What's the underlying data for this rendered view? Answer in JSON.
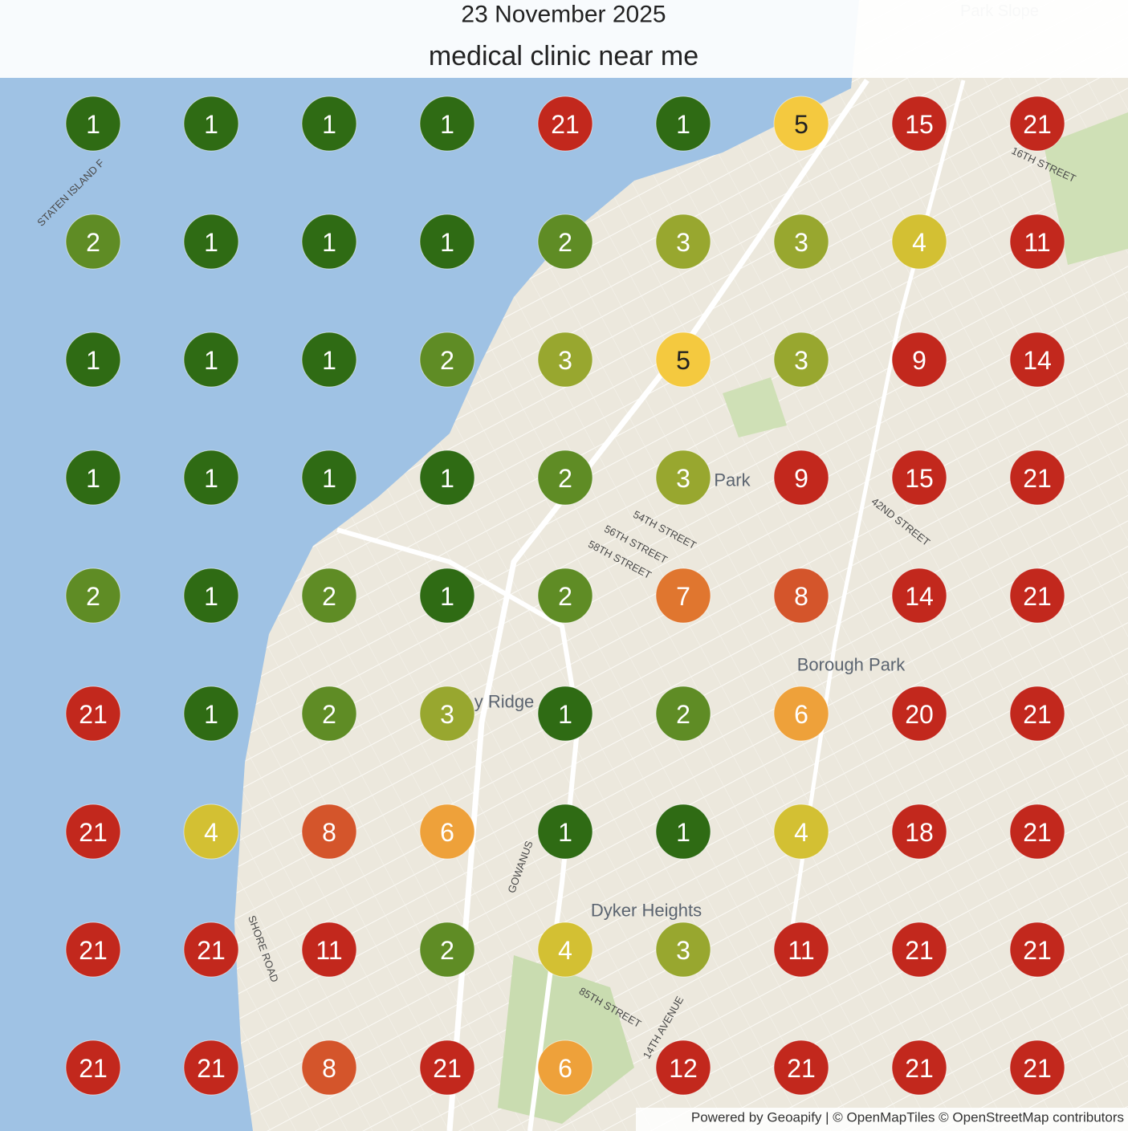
{
  "header": {
    "date": "23 November 2025",
    "query": "medical clinic near me"
  },
  "grid": {
    "rows": [
      [
        1,
        1,
        1,
        1,
        21,
        1,
        5,
        15,
        21
      ],
      [
        2,
        1,
        1,
        1,
        2,
        3,
        3,
        4,
        11
      ],
      [
        1,
        1,
        1,
        2,
        3,
        5,
        3,
        9,
        14
      ],
      [
        1,
        1,
        1,
        1,
        2,
        3,
        9,
        15,
        21
      ],
      [
        2,
        1,
        2,
        1,
        2,
        7,
        8,
        14,
        21
      ],
      [
        21,
        1,
        2,
        3,
        1,
        2,
        6,
        20,
        21
      ],
      [
        21,
        4,
        8,
        6,
        1,
        1,
        4,
        18,
        21
      ],
      [
        21,
        21,
        11,
        2,
        4,
        3,
        11,
        21,
        21
      ],
      [
        21,
        21,
        8,
        21,
        6,
        12,
        21,
        21,
        21
      ]
    ],
    "rank_colors": [
      "#2f6b14",
      "#5f8c25",
      "#98a72f",
      "#d3c033",
      "#f4c93f",
      "#eea13a",
      "#e0762f",
      "#d4552b",
      "#c2281d"
    ]
  },
  "map_labels": [
    "Park Slope",
    "Park",
    "Borough Park",
    "y Ridge",
    "Dyker Heights",
    "54TH STREET",
    "56TH STREET",
    "58TH STREET",
    "42ND STREET",
    "SHORE ROAD",
    "GOWANUS",
    "14TH AVENUE",
    "85TH STREET",
    "16TH STREET",
    "STATEN ISLAND F"
  ],
  "attribution": "Powered by Geoapify | © OpenMapTiles © OpenStreetMap contributors"
}
